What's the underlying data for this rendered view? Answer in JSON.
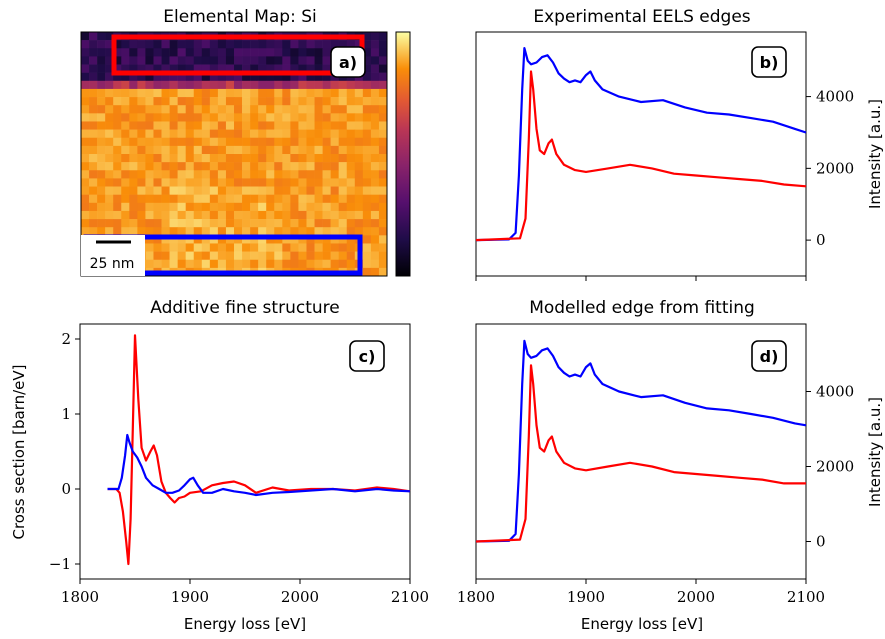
{
  "colors": {
    "red": "#ff0000",
    "blue": "#0000ff",
    "black": "#000000"
  },
  "panels": {
    "a": {
      "title": "Elemental Map: Si",
      "badge": "a)",
      "scalebar_label": "25 nm"
    },
    "b": {
      "title": "Experimental EELS edges",
      "badge": "b)",
      "ylabel": "Intensity [a.u.]"
    },
    "c": {
      "title": "Additive fine structure",
      "badge": "c)",
      "ylabel": "Cross section [barn/eV]",
      "xlabel": "Energy loss [eV]"
    },
    "d": {
      "title": "Modelled edge from fitting",
      "badge": "d)",
      "ylabel": "Intensity [a.u.]",
      "xlabel": "Energy loss [eV]"
    }
  },
  "chart_data": [
    {
      "id": "a",
      "type": "heatmap",
      "title": "Elemental Map: Si",
      "colormap": "inferno",
      "colorbar": true,
      "colorbar_ticks": false,
      "regions": [
        {
          "color": "#ff0000",
          "location": "top-right strip"
        },
        {
          "color": "#0000ff",
          "location": "bottom-left strip"
        }
      ],
      "scalebar": "25 nm"
    },
    {
      "id": "b",
      "type": "line",
      "title": "Experimental EELS edges",
      "xlabel": "",
      "ylabel": "Intensity [a.u.]",
      "xlim": [
        1800,
        2100
      ],
      "ylim": [
        -1000,
        5800
      ],
      "xticks": [
        1800,
        1900,
        2000,
        2100
      ],
      "yticks": [
        0,
        2000,
        4000
      ],
      "yticks_side": "right",
      "series": [
        {
          "color": "#0000ff",
          "x": [
            1800,
            1830,
            1836,
            1839,
            1842,
            1844,
            1847,
            1850,
            1855,
            1860,
            1865,
            1870,
            1875,
            1880,
            1885,
            1890,
            1895,
            1900,
            1904,
            1908,
            1915,
            1930,
            1950,
            1970,
            1990,
            2010,
            2030,
            2050,
            2070,
            2090,
            2100
          ],
          "y": [
            0,
            20,
            200,
            1800,
            4200,
            5350,
            5000,
            4900,
            4950,
            5100,
            5150,
            4950,
            4650,
            4500,
            4400,
            4450,
            4400,
            4600,
            4700,
            4450,
            4200,
            4000,
            3850,
            3900,
            3700,
            3550,
            3500,
            3400,
            3300,
            3100,
            3000
          ]
        },
        {
          "color": "#ff0000",
          "x": [
            1800,
            1840,
            1845,
            1848,
            1850,
            1852,
            1855,
            1858,
            1862,
            1866,
            1869,
            1873,
            1880,
            1890,
            1900,
            1920,
            1940,
            1960,
            1980,
            2000,
            2020,
            2040,
            2060,
            2080,
            2100
          ],
          "y": [
            0,
            50,
            600,
            2800,
            4700,
            4200,
            3100,
            2500,
            2400,
            2700,
            2800,
            2400,
            2100,
            1950,
            1900,
            2000,
            2100,
            2000,
            1850,
            1800,
            1750,
            1700,
            1650,
            1550,
            1500
          ]
        }
      ]
    },
    {
      "id": "c",
      "type": "line",
      "title": "Additive fine structure",
      "xlabel": "Energy loss [eV]",
      "ylabel": "Cross section [barn/eV]",
      "xlim": [
        1800,
        2100
      ],
      "ylim": [
        -1.2,
        2.2
      ],
      "xticks": [
        1800,
        1900,
        2000,
        2100
      ],
      "yticks": [
        -1,
        0,
        1,
        2
      ],
      "series": [
        {
          "color": "#ff0000",
          "x": [
            1825,
            1833,
            1836,
            1839,
            1842,
            1844,
            1846,
            1848,
            1850,
            1853,
            1856,
            1860,
            1864,
            1867,
            1870,
            1874,
            1878,
            1882,
            1886,
            1890,
            1895,
            1900,
            1910,
            1920,
            1930,
            1940,
            1950,
            1960,
            1975,
            1990,
            2010,
            2030,
            2050,
            2070,
            2085,
            2100
          ],
          "y": [
            0,
            0,
            -0.05,
            -0.3,
            -0.7,
            -1.0,
            -0.4,
            0.8,
            2.05,
            1.2,
            0.55,
            0.38,
            0.5,
            0.58,
            0.45,
            0.1,
            -0.05,
            -0.12,
            -0.18,
            -0.12,
            -0.1,
            -0.05,
            -0.03,
            0.05,
            0.08,
            0.1,
            0.05,
            -0.05,
            0.02,
            -0.02,
            0.0,
            0.0,
            -0.02,
            0.02,
            0.0,
            -0.03
          ]
        },
        {
          "color": "#0000ff",
          "x": [
            1825,
            1835,
            1838,
            1841,
            1843,
            1845,
            1848,
            1852,
            1856,
            1860,
            1866,
            1872,
            1878,
            1884,
            1890,
            1895,
            1900,
            1903,
            1907,
            1912,
            1920,
            1930,
            1940,
            1950,
            1960,
            1975,
            1990,
            2010,
            2030,
            2050,
            2070,
            2085,
            2100
          ],
          "y": [
            0,
            0,
            0.15,
            0.45,
            0.72,
            0.62,
            0.5,
            0.42,
            0.3,
            0.15,
            0.05,
            0.0,
            -0.05,
            -0.05,
            -0.02,
            0.05,
            0.13,
            0.15,
            0.05,
            -0.05,
            -0.05,
            0.0,
            -0.03,
            -0.05,
            -0.08,
            -0.05,
            -0.04,
            -0.02,
            0.0,
            -0.03,
            0.0,
            -0.02,
            -0.03
          ]
        }
      ]
    },
    {
      "id": "d",
      "type": "line",
      "title": "Modelled edge from fitting",
      "xlabel": "Energy loss [eV]",
      "ylabel": "Intensity [a.u.]",
      "xlim": [
        1800,
        2100
      ],
      "ylim": [
        -1000,
        5800
      ],
      "xticks": [
        1800,
        1900,
        2000,
        2100
      ],
      "yticks": [
        0,
        2000,
        4000
      ],
      "yticks_side": "right",
      "series": [
        {
          "color": "#0000ff",
          "x": [
            1800,
            1830,
            1836,
            1839,
            1842,
            1844,
            1847,
            1850,
            1855,
            1860,
            1865,
            1870,
            1875,
            1880,
            1885,
            1890,
            1895,
            1900,
            1904,
            1908,
            1915,
            1930,
            1950,
            1970,
            1990,
            2010,
            2030,
            2050,
            2070,
            2090,
            2100
          ],
          "y": [
            0,
            20,
            200,
            1800,
            4200,
            5350,
            5000,
            4900,
            4950,
            5100,
            5150,
            4950,
            4650,
            4500,
            4400,
            4450,
            4400,
            4650,
            4750,
            4450,
            4200,
            4000,
            3850,
            3900,
            3700,
            3550,
            3500,
            3400,
            3300,
            3150,
            3100
          ]
        },
        {
          "color": "#ff0000",
          "x": [
            1800,
            1840,
            1845,
            1848,
            1850,
            1852,
            1855,
            1858,
            1862,
            1866,
            1869,
            1873,
            1880,
            1890,
            1900,
            1920,
            1940,
            1960,
            1980,
            2000,
            2020,
            2040,
            2060,
            2080,
            2100
          ],
          "y": [
            0,
            50,
            600,
            2800,
            4700,
            4200,
            3100,
            2500,
            2400,
            2700,
            2800,
            2400,
            2100,
            1950,
            1900,
            2000,
            2100,
            2000,
            1850,
            1800,
            1750,
            1700,
            1650,
            1550,
            1550
          ]
        }
      ]
    }
  ]
}
